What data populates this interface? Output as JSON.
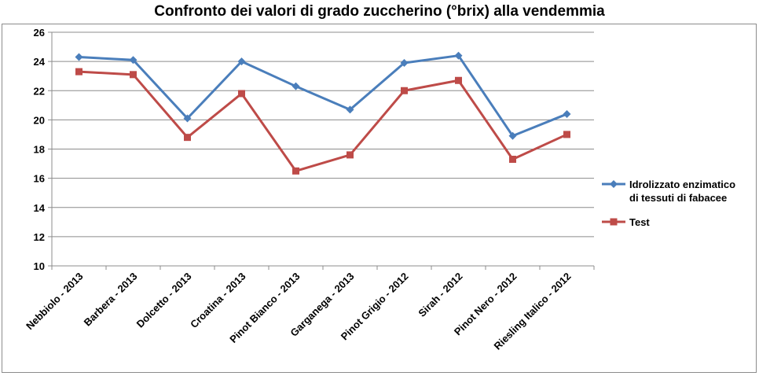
{
  "chart_data": {
    "type": "line",
    "title": "Confronto dei valori di grado zuccherino (°brix) alla vendemmia",
    "xlabel": "",
    "ylabel": "",
    "ylim": [
      10,
      26
    ],
    "yticks": [
      10,
      12,
      14,
      16,
      18,
      20,
      22,
      24,
      26
    ],
    "grid": "horizontal",
    "legend_position": "right",
    "categories": [
      "Nebbiolo - 2013",
      "Barbera - 2013",
      "Dolcetto - 2013",
      "Croatina - 2013",
      "Pinot Bianco - 2013",
      "Garganega - 2013",
      "Pinot Grigio - 2012",
      "Sirah - 2012",
      "Pinot Nero - 2012",
      "Riesling Italico - 2012"
    ],
    "series": [
      {
        "name": "Idrolizzato enzimatico di tessuti di fabacee",
        "legend_lines": [
          "Idrolizzato enzimatico",
          "di tessuti di fabacee"
        ],
        "marker": "diamond",
        "color": "#4a7ebb",
        "values": [
          24.3,
          24.1,
          20.1,
          24.0,
          22.3,
          20.7,
          23.9,
          24.4,
          18.9,
          20.4
        ]
      },
      {
        "name": "Test",
        "legend_lines": [
          "Test"
        ],
        "marker": "square",
        "color": "#be4b48",
        "values": [
          23.3,
          23.1,
          18.8,
          21.8,
          16.5,
          17.6,
          22.0,
          22.7,
          17.3,
          19.0
        ]
      }
    ]
  }
}
